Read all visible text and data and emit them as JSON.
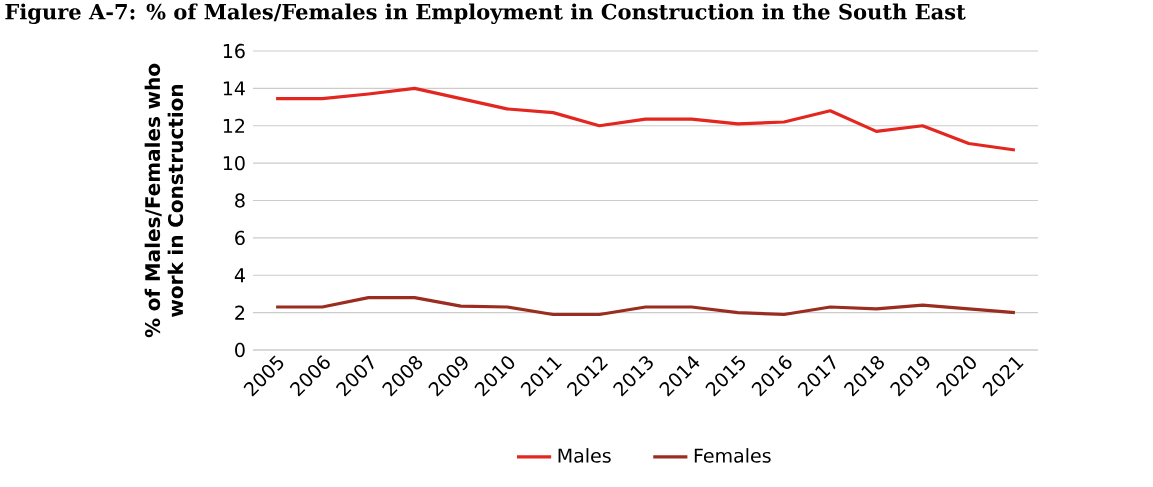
{
  "chart_data": {
    "type": "line",
    "title": "Figure A-7: % of Males/Females in Employment in Construction in the South East",
    "ylabel": "% of Males/Females who work in Construction",
    "categories": [
      "2005",
      "2006",
      "2007",
      "2008",
      "2009",
      "2010",
      "2011",
      "2012",
      "2013",
      "2014",
      "2015",
      "2016",
      "2017",
      "2018",
      "2019",
      "2020",
      "2021"
    ],
    "series": [
      {
        "name": "Males",
        "color": "#e3261f",
        "values": [
          13.45,
          13.45,
          13.7,
          14.0,
          13.45,
          12.9,
          12.7,
          12.0,
          12.35,
          12.35,
          12.1,
          12.2,
          12.8,
          11.7,
          12.0,
          11.05,
          10.7
        ]
      },
      {
        "name": "Females",
        "color": "#9b2d20",
        "values": [
          2.3,
          2.3,
          2.8,
          2.8,
          2.35,
          2.3,
          1.9,
          1.9,
          2.3,
          2.3,
          2.0,
          1.9,
          2.3,
          2.2,
          2.4,
          2.2,
          2.0
        ]
      }
    ],
    "ylim": [
      0,
      16
    ],
    "yticks": [
      0,
      2,
      4,
      6,
      8,
      10,
      12,
      14,
      16
    ],
    "grid": "y",
    "legend": "bottom",
    "marker": "none",
    "line_style": "solid"
  }
}
